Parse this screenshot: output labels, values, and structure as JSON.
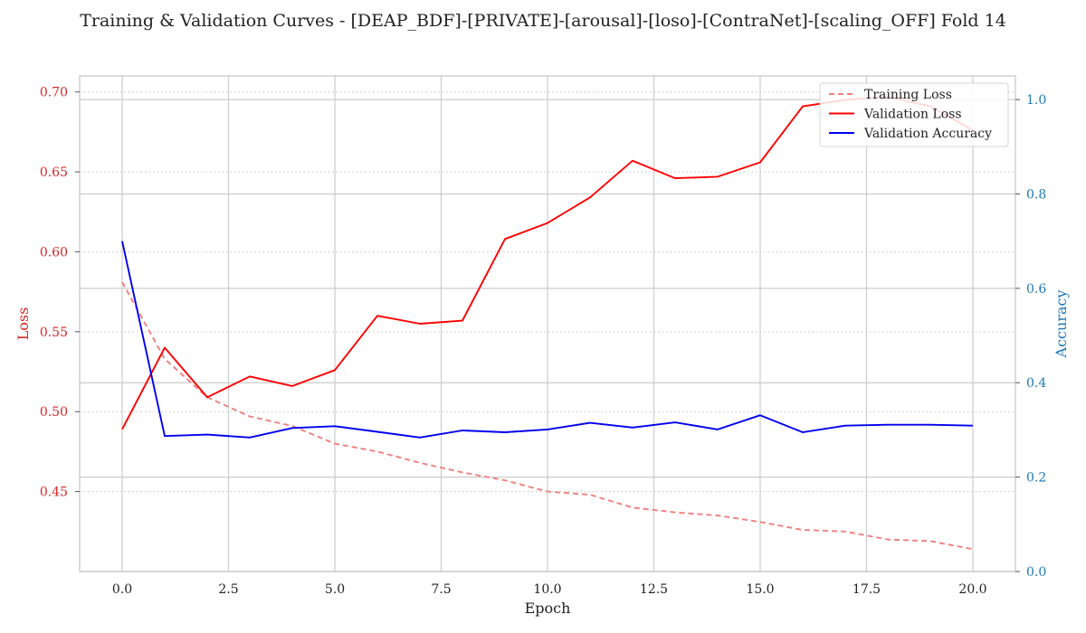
{
  "chart_data": {
    "type": "line",
    "title": "Training & Validation Curves - [DEAP_BDF]-[PRIVATE]-[arousal]-[loso]-[ContraNet]-[scaling_OFF] Fold 14",
    "xlabel": "Epoch",
    "ylabel_left": "Loss",
    "ylabel_right": "Accuracy",
    "xlim": [
      -1,
      21
    ],
    "ylim_left": [
      0.4,
      0.71
    ],
    "ylim_right": [
      0.0,
      1.05
    ],
    "x_ticks": [
      "0.0",
      "2.5",
      "5.0",
      "7.5",
      "10.0",
      "12.5",
      "15.0",
      "17.5",
      "20.0"
    ],
    "y_left_ticks": [
      "0.45",
      "0.50",
      "0.55",
      "0.60",
      "0.65",
      "0.70"
    ],
    "y_right_ticks": [
      "0.0",
      "0.2",
      "0.4",
      "0.6",
      "0.8",
      "1.0"
    ],
    "x": [
      0,
      1,
      2,
      3,
      4,
      5,
      6,
      7,
      8,
      9,
      10,
      11,
      12,
      13,
      14,
      15,
      16,
      17,
      18,
      19,
      20
    ],
    "grid": true,
    "legend_position": "top-right",
    "colors": {
      "left_axis": "#d62728",
      "right_axis": "#1f77b4"
    },
    "series": [
      {
        "name": "Training Loss",
        "axis": "left",
        "style": "dashed",
        "color": "#f08080",
        "values": [
          0.581,
          0.533,
          0.509,
          0.497,
          0.491,
          0.48,
          0.475,
          0.468,
          0.462,
          0.457,
          0.45,
          0.448,
          0.44,
          0.437,
          0.435,
          0.431,
          0.426,
          0.425,
          0.42,
          0.419,
          0.414
        ]
      },
      {
        "name": "Validation Loss",
        "axis": "left",
        "style": "solid",
        "color": "#ff0000",
        "values": [
          0.489,
          0.54,
          0.509,
          0.522,
          0.516,
          0.526,
          0.56,
          0.555,
          0.557,
          0.608,
          0.618,
          0.634,
          0.657,
          0.646,
          0.647,
          0.656,
          0.691,
          0.695,
          0.697,
          0.691,
          0.676
        ]
      },
      {
        "name": "Validation Accuracy",
        "axis": "right",
        "style": "solid",
        "color": "#0000ee",
        "values": [
          0.7,
          0.287,
          0.29,
          0.284,
          0.304,
          0.308,
          0.296,
          0.284,
          0.299,
          0.295,
          0.301,
          0.315,
          0.305,
          0.316,
          0.301,
          0.331,
          0.295,
          0.309,
          0.311,
          0.311,
          0.309
        ]
      }
    ]
  }
}
